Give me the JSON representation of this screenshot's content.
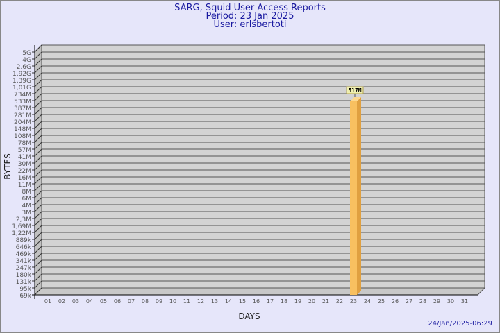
{
  "chart_data": {
    "type": "bar",
    "title": "SARG, Squid User Access Reports",
    "subtitle_period": "Period: 23 Jan 2025",
    "subtitle_user": "User: erlsbertoti",
    "xlabel": "DAYS",
    "ylabel": "BYTES",
    "yscale": "log",
    "grid": true,
    "categories": [
      "01",
      "02",
      "03",
      "04",
      "05",
      "06",
      "07",
      "08",
      "09",
      "10",
      "11",
      "12",
      "13",
      "14",
      "15",
      "16",
      "17",
      "18",
      "19",
      "20",
      "21",
      "22",
      "23",
      "24",
      "25",
      "26",
      "27",
      "28",
      "29",
      "30",
      "31"
    ],
    "y_ticks": [
      "69k",
      "95k",
      "131k",
      "180k",
      "247k",
      "341k",
      "469k",
      "646k",
      "889k",
      "1,22M",
      "1,69M",
      "2,3M",
      "3M",
      "4M",
      "6M",
      "8M",
      "11M",
      "16M",
      "22M",
      "30M",
      "41M",
      "57M",
      "78M",
      "108M",
      "148M",
      "204M",
      "281M",
      "387M",
      "533M",
      "734M",
      "1,01G",
      "1,39G",
      "1,92G",
      "2,6G",
      "4G",
      "5G"
    ],
    "y_tick_values": [
      69000,
      95000,
      131000,
      180000,
      247000,
      341000,
      469000,
      646000,
      889000,
      1220000,
      1690000,
      2300000,
      3000000,
      4000000,
      6000000,
      8000000,
      11000000,
      16000000,
      22000000,
      30000000,
      41000000,
      57000000,
      78000000,
      108000000,
      148000000,
      204000000,
      281000000,
      387000000,
      533000000,
      734000000,
      1010000000,
      1390000000,
      1920000000,
      2600000000,
      4000000000,
      5000000000
    ],
    "bars": [
      {
        "day": "23",
        "value": 517000000,
        "label": "517M"
      }
    ],
    "bar_color": "#f8c060",
    "timestamp": "24/Jan/2025-06:29"
  }
}
